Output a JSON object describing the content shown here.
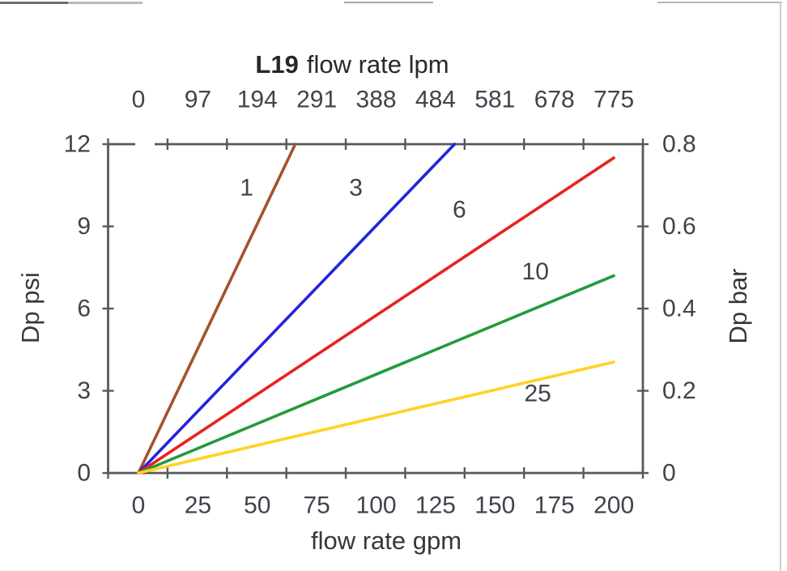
{
  "chart_data": {
    "type": "line",
    "title": "L19 flow rate lpm",
    "title_model": "L19",
    "title_rest": "flow rate lpm",
    "grid": false,
    "legend": "inline curve labels",
    "axis_color": "#57595c",
    "label_color": "#3f444b",
    "top_axis": {
      "label": "flow rate lpm",
      "tick_labels": [
        "0",
        "97",
        "194",
        "291",
        "388",
        "484",
        "581",
        "678",
        "775"
      ],
      "range_lpm": [
        0,
        775
      ]
    },
    "bottom_axis": {
      "label": "flow rate gpm",
      "tick_labels": [
        "0",
        "25",
        "50",
        "75",
        "100",
        "125",
        "150",
        "175",
        "200"
      ],
      "range_gpm": [
        0,
        200
      ]
    },
    "left_axis": {
      "label": "Dp psi",
      "tick_labels": [
        "0",
        "3",
        "6",
        "9",
        "12"
      ],
      "range": [
        0,
        12
      ]
    },
    "right_axis": {
      "label": "Dp bar",
      "tick_labels": [
        "0",
        "0.2",
        "0.4",
        "0.6",
        "0.8"
      ],
      "range": [
        0,
        0.8
      ]
    },
    "series": [
      {
        "name": "1",
        "color": "#a3532b",
        "points_gpm_psi": [
          [
            0,
            0
          ],
          [
            66,
            12
          ]
        ],
        "label_pos_gpm_psi": [
          45.5,
          10.4
        ]
      },
      {
        "name": "3",
        "color": "#2424dd",
        "points_gpm_psi": [
          [
            0,
            0
          ],
          [
            133,
            12
          ]
        ],
        "label_pos_gpm_psi": [
          91.5,
          10.4
        ]
      },
      {
        "name": "6",
        "color": "#e8231f",
        "points_gpm_psi": [
          [
            0,
            0
          ],
          [
            200,
            11.5
          ]
        ],
        "label_pos_gpm_psi": [
          135,
          9.6
        ]
      },
      {
        "name": "10",
        "color": "#229b3c",
        "points_gpm_psi": [
          [
            0,
            0
          ],
          [
            200,
            7.2
          ]
        ],
        "label_pos_gpm_psi": [
          167,
          7.35
        ]
      },
      {
        "name": "25",
        "color": "#ffd224",
        "points_gpm_psi": [
          [
            0,
            0
          ],
          [
            200,
            4.05
          ]
        ],
        "label_pos_gpm_psi": [
          168,
          2.9
        ]
      }
    ]
  }
}
